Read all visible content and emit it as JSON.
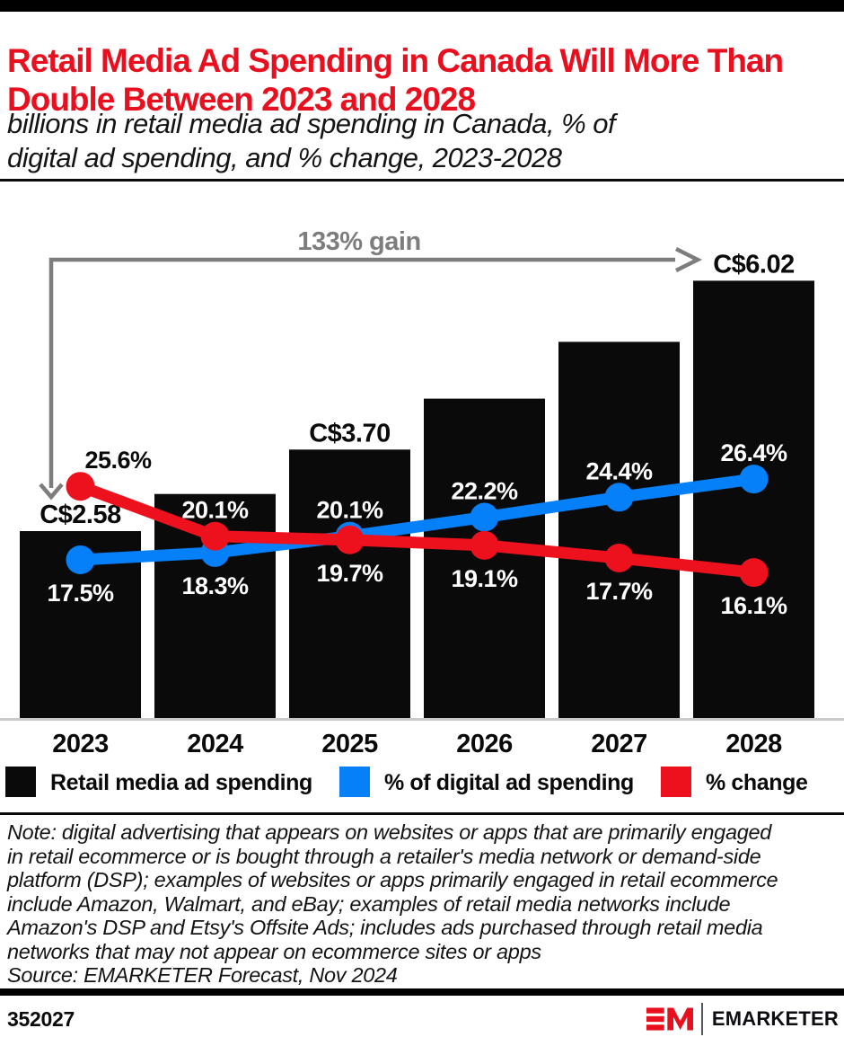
{
  "colors": {
    "accent_red": "#E8101E",
    "bar_black": "#0A0A0A",
    "line_blue": "#0680F9",
    "line_red": "#ED111E",
    "annotation_gray": "#7D7D7D",
    "baseline_gray": "#C9C9C9"
  },
  "header": {
    "title_lines": [
      "Retail Media Ad Spending in Canada Will More Than",
      "Double Between 2023 and 2028"
    ],
    "subtitle_lines": [
      "billions in retail media ad spending in Canada, % of",
      "digital ad spending, and % change, 2023-2028"
    ]
  },
  "chart_data": {
    "type": "bar",
    "categories": [
      "2023",
      "2024",
      "2025",
      "2026",
      "2027",
      "2028"
    ],
    "bar_series": {
      "name": "Retail media ad spending",
      "unit": "C$ billions",
      "color": "#0A0A0A",
      "values": [
        2.58,
        3.09,
        3.7,
        4.4,
        5.18,
        6.02
      ],
      "value_labels": [
        "C$2.58",
        "",
        "C$3.70",
        "",
        "",
        "C$6.02"
      ],
      "estimated": [
        false,
        true,
        false,
        true,
        true,
        false
      ],
      "ylim": [
        0,
        7.1
      ]
    },
    "line_series": [
      {
        "name": "% of digital ad spending",
        "color": "#0680F9",
        "values": [
          17.5,
          18.3,
          20.1,
          22.2,
          24.4,
          26.4
        ],
        "labels": [
          "17.5%",
          "18.3%",
          "20.1%",
          "22.2%",
          "24.4%",
          "26.4%"
        ],
        "label_side": [
          "below",
          "below",
          "above",
          "above",
          "above",
          "above"
        ],
        "label_colors": [
          "#ffffff",
          "#ffffff",
          "#ffffff",
          "#ffffff",
          "#ffffff",
          "#ffffff"
        ]
      },
      {
        "name": "% change",
        "color": "#ED111E",
        "values": [
          25.6,
          20.1,
          19.7,
          19.1,
          17.7,
          16.1
        ],
        "labels": [
          "25.6%",
          "20.1%",
          "19.7%",
          "19.1%",
          "17.7%",
          "16.1%"
        ],
        "label_side": [
          "above",
          "above",
          "below",
          "below",
          "below",
          "below"
        ],
        "label_colors": [
          "#0a0a0a",
          "#ffffff",
          "#ffffff",
          "#ffffff",
          "#ffffff",
          "#ffffff"
        ]
      }
    ],
    "annotation": {
      "label": "133% gain",
      "from_category": "2023",
      "to_category": "2028",
      "color": "#7D7D7D"
    },
    "grid": false,
    "legend_position": "bottom"
  },
  "legend": {
    "items": [
      {
        "label": "Retail media ad spending",
        "color": "#0A0A0A"
      },
      {
        "label": "% of digital ad spending",
        "color": "#0680F9"
      },
      {
        "label": "% change",
        "color": "#ED111E"
      }
    ]
  },
  "note": {
    "lines": [
      "Note: digital advertising that appears on websites or apps that are primarily engaged",
      "in retail ecommerce or is bought through a retailer's media network or demand-side",
      "platform (DSP); examples of websites or apps primarily engaged in retail ecommerce",
      "include Amazon, Walmart, and eBay; examples of retail media networks include",
      "Amazon's DSP and Etsy's Offsite Ads; includes ads purchased through retail media",
      "networks that may not appear on ecommerce sites or apps"
    ],
    "source": "Source: EMARKETER Forecast, Nov 2024"
  },
  "footer": {
    "chart_id": "352027",
    "brand": "EMARKETER"
  }
}
